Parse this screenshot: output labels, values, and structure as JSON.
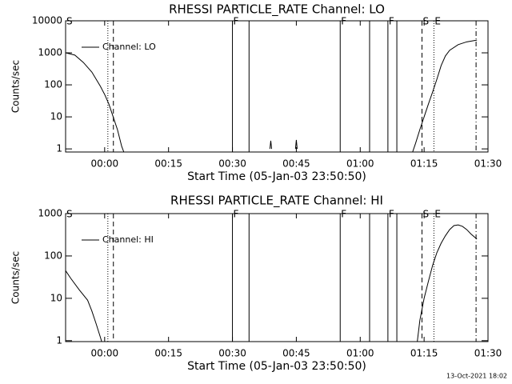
{
  "chart_data": [
    {
      "type": "line",
      "title": "RHESSI PARTICLE_RATE Channel: LO",
      "x_label": "Start Time (05-Jan-03 23:50:50)",
      "y_label": "Counts/sec",
      "log_y": true,
      "xlim": [
        -9.17,
        90
      ],
      "ylim": [
        0.8,
        10000
      ],
      "xticks": [
        {
          "value": 0,
          "label": "00:00"
        },
        {
          "value": 15,
          "label": "00:15"
        },
        {
          "value": 30,
          "label": "00:30"
        },
        {
          "value": 45,
          "label": "00:45"
        },
        {
          "value": 60,
          "label": "01:00"
        },
        {
          "value": 75,
          "label": "01:15"
        },
        {
          "value": 90,
          "label": "01:30"
        }
      ],
      "yticks": [
        1,
        10,
        100,
        1000,
        10000
      ],
      "legend": "upper left",
      "series": [
        {
          "name": "Channel: LO",
          "color": "#000000",
          "x": [
            -9.17,
            -7,
            -5,
            -3,
            -1,
            0,
            1,
            2,
            3,
            4,
            4.5,
            null,
            38.8,
            39,
            39.2,
            null,
            44.8,
            45,
            45.2,
            null,
            72.3,
            73,
            74,
            75,
            76,
            77,
            78,
            79,
            80,
            81,
            83,
            85,
            87.4
          ],
          "values": [
            1000,
            850,
            500,
            250,
            90,
            50,
            25,
            10,
            4,
            1.2,
            0.8,
            null,
            1,
            1.8,
            1,
            null,
            1,
            1.9,
            1,
            null,
            0.8,
            1.5,
            4,
            10,
            25,
            60,
            150,
            400,
            800,
            1200,
            1800,
            2200,
            2500
          ]
        }
      ],
      "markers": [
        {
          "x": -9.17,
          "style": "solid",
          "label": "S"
        },
        {
          "x": 0.75,
          "style": "dotted"
        },
        {
          "x": 2.05,
          "style": "dashed"
        },
        {
          "x": 30,
          "style": "solid",
          "label": "F"
        },
        {
          "x": 33.9,
          "style": "solid"
        },
        {
          "x": 55.3,
          "style": "solid",
          "label": "F"
        },
        {
          "x": 62.2,
          "style": "solid"
        },
        {
          "x": 66.5,
          "style": "solid",
          "label": "F"
        },
        {
          "x": 68.6,
          "style": "solid"
        },
        {
          "x": 74.5,
          "style": "dashed",
          "label": "S"
        },
        {
          "x": 77.3,
          "style": "dotted",
          "label": "E"
        },
        {
          "x": 87.2,
          "style": "dash-dot"
        }
      ]
    },
    {
      "type": "line",
      "title": "RHESSI PARTICLE_RATE Channel: HI",
      "x_label": "Start Time (05-Jan-03 23:50:50)",
      "y_label": "Counts/sec",
      "log_y": true,
      "xlim": [
        -9.17,
        90
      ],
      "ylim": [
        0.95,
        1000
      ],
      "xticks": [
        {
          "value": 0,
          "label": "00:00"
        },
        {
          "value": 15,
          "label": "00:15"
        },
        {
          "value": 30,
          "label": "00:30"
        },
        {
          "value": 45,
          "label": "00:45"
        },
        {
          "value": 60,
          "label": "01:00"
        },
        {
          "value": 75,
          "label": "01:15"
        },
        {
          "value": 90,
          "label": "01:30"
        }
      ],
      "yticks": [
        1,
        10,
        100,
        1000
      ],
      "legend": "upper left",
      "series": [
        {
          "name": "Channel: HI",
          "color": "#000000",
          "x": [
            -9.17,
            -8,
            -6,
            -4,
            -3,
            -2,
            -1,
            -0.7,
            null,
            73.4,
            74,
            75,
            76,
            77,
            78,
            79,
            80,
            81,
            82,
            83,
            84,
            85,
            86,
            87.4
          ],
          "values": [
            45,
            30,
            16,
            9,
            5,
            2.5,
            1.2,
            0.95,
            null,
            0.95,
            3,
            10,
            25,
            60,
            120,
            200,
            300,
            420,
            520,
            540,
            500,
            420,
            330,
            250
          ]
        }
      ],
      "markers": [
        {
          "x": -9.17,
          "style": "solid",
          "label": "S"
        },
        {
          "x": 0.75,
          "style": "dotted"
        },
        {
          "x": 2.05,
          "style": "dashed"
        },
        {
          "x": 30,
          "style": "solid",
          "label": "F"
        },
        {
          "x": 33.9,
          "style": "solid"
        },
        {
          "x": 55.3,
          "style": "solid",
          "label": "F"
        },
        {
          "x": 62.2,
          "style": "solid"
        },
        {
          "x": 66.5,
          "style": "solid",
          "label": "F"
        },
        {
          "x": 68.6,
          "style": "solid"
        },
        {
          "x": 74.5,
          "style": "dashed",
          "label": "S"
        },
        {
          "x": 77.3,
          "style": "dotted",
          "label": "E"
        },
        {
          "x": 87.2,
          "style": "dash-dot"
        }
      ]
    }
  ],
  "footer": "13-Oct-2021 18:02"
}
